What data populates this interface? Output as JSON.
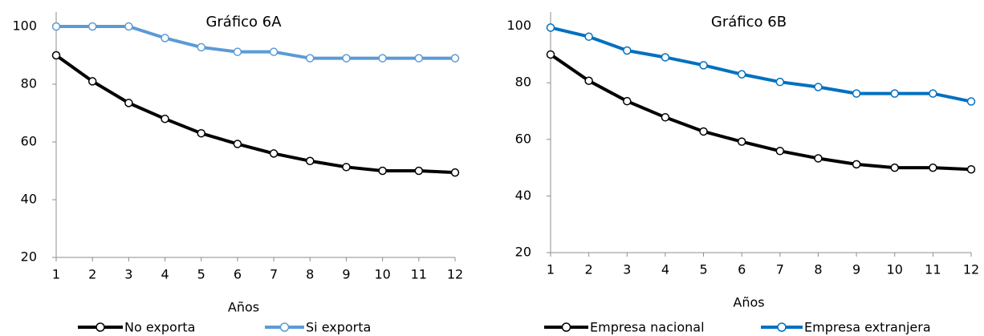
{
  "chart_data": [
    {
      "type": "line",
      "title": "Gráfico 6A",
      "x_label": "Años",
      "x": [
        1,
        2,
        3,
        4,
        5,
        6,
        7,
        8,
        9,
        10,
        11,
        12
      ],
      "xlim": [
        1,
        12
      ],
      "xticks": [
        1,
        2,
        3,
        4,
        5,
        6,
        7,
        8,
        9,
        10,
        11,
        12
      ],
      "ylim": [
        20,
        105
      ],
      "yticks": [
        20,
        40,
        60,
        80,
        100
      ],
      "series": [
        {
          "name": "No exporta",
          "color": "#000000",
          "values": [
            90,
            81,
            73.5,
            68,
            63,
            59.3,
            56,
            53.4,
            51.3,
            50,
            50,
            49.4
          ]
        },
        {
          "name": "Si exporta",
          "color": "#5b9bd5",
          "values": [
            100,
            100,
            100,
            96,
            92.8,
            91.2,
            91.2,
            89,
            89,
            89,
            89,
            89
          ]
        }
      ]
    },
    {
      "type": "line",
      "title": "Gráfico 6B",
      "x_label": "Años",
      "x": [
        1,
        2,
        3,
        4,
        5,
        6,
        7,
        8,
        9,
        10,
        11,
        12
      ],
      "xlim": [
        1,
        12
      ],
      "xticks": [
        1,
        2,
        3,
        4,
        5,
        6,
        7,
        8,
        9,
        10,
        11,
        12
      ],
      "ylim": [
        20,
        105
      ],
      "yticks": [
        20,
        40,
        60,
        80,
        100
      ],
      "series": [
        {
          "name": "Empresa nacional",
          "color": "#000000",
          "values": [
            90,
            80.7,
            73.5,
            67.8,
            62.8,
            59.2,
            55.9,
            53.3,
            51.2,
            50,
            50,
            49.4
          ]
        },
        {
          "name": "Empresa extranjera",
          "color": "#0070c0",
          "values": [
            99.5,
            96.3,
            91.4,
            89,
            86.2,
            83,
            80.3,
            78.5,
            76.2,
            76.2,
            76.2,
            73.4
          ]
        }
      ]
    }
  ]
}
